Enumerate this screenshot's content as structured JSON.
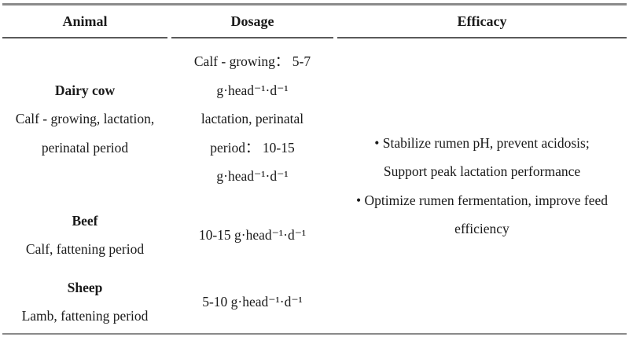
{
  "table": {
    "columns": [
      "Animal",
      "Dosage",
      "Efficacy"
    ],
    "rows": [
      {
        "animal": {
          "name": "Dairy cow",
          "detail_lines": [
            "Calf - growing, lactation,",
            "perinatal period"
          ]
        },
        "dosage_lines": [
          "Calf - growing： 5-7",
          "g·head⁻¹·d⁻¹",
          "lactation, perinatal",
          "period： 10-15",
          "g·head⁻¹·d⁻¹"
        ]
      },
      {
        "animal": {
          "name": "Beef",
          "detail_lines": [
            "Calf, fattening period"
          ]
        },
        "dosage_lines": [
          "10-15 g·head⁻¹·d⁻¹"
        ]
      },
      {
        "animal": {
          "name": "Sheep",
          "detail_lines": [
            "Lamb, fattening period"
          ]
        },
        "dosage_lines": [
          "5-10 g·head⁻¹·d⁻¹"
        ]
      }
    ],
    "efficacy_lines": [
      "• Stabilize rumen pH, prevent acidosis;",
      "Support peak lactation performance",
      "• Optimize rumen fermentation, improve feed",
      "efficiency"
    ]
  }
}
